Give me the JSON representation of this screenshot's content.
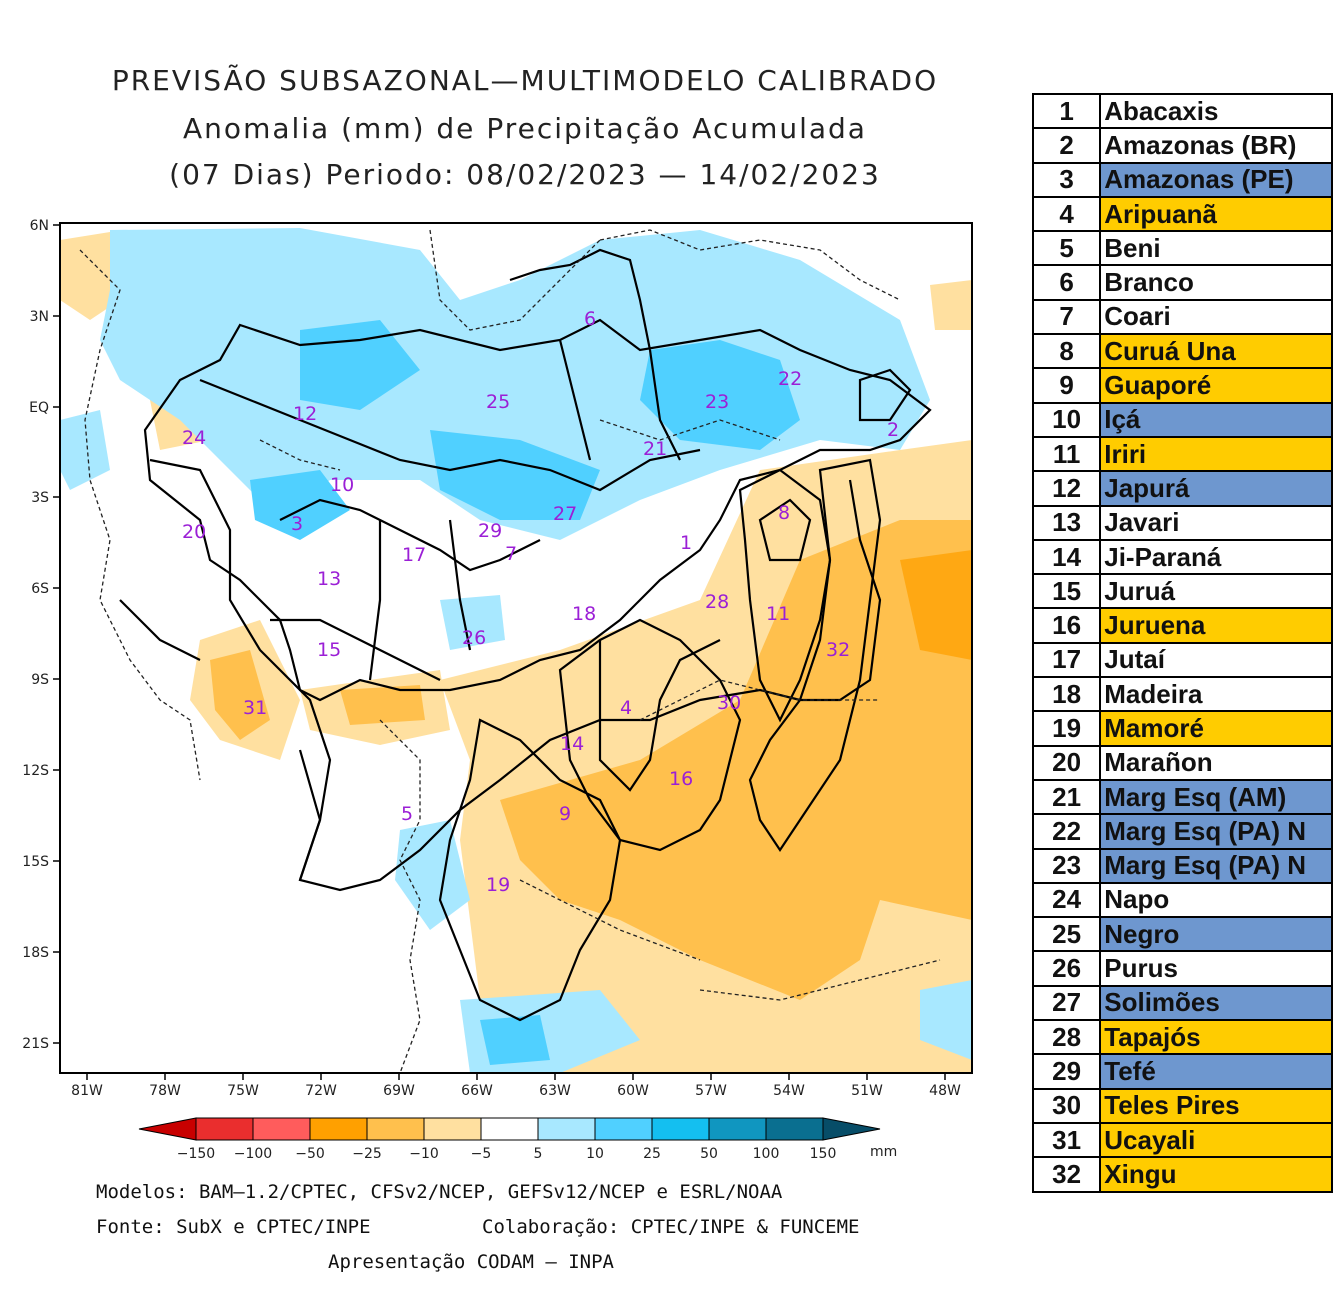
{
  "title": {
    "line1": "PREVISÃO SUBSAZONAL—MULTIMODELO CALIBRADO",
    "line2": "Anomalia (mm) de Precipitação Acumulada",
    "line3": "(07 Dias) Periodo: 08/02/2023 — 14/02/2023"
  },
  "axes": {
    "lat_labels": [
      "6N",
      "3N",
      "EQ",
      "3S",
      "6S",
      "9S",
      "12S",
      "15S",
      "18S",
      "21S"
    ],
    "lon_labels": [
      "81W",
      "78W",
      "75W",
      "72W",
      "69W",
      "66W",
      "63W",
      "60W",
      "57W",
      "54W",
      "51W",
      "48W"
    ]
  },
  "basin_labels": [
    {
      "id": "1"
    },
    {
      "id": "2"
    },
    {
      "id": "3"
    },
    {
      "id": "4"
    },
    {
      "id": "5"
    },
    {
      "id": "6"
    },
    {
      "id": "7"
    },
    {
      "id": "8"
    },
    {
      "id": "9"
    },
    {
      "id": "10"
    },
    {
      "id": "11"
    },
    {
      "id": "12"
    },
    {
      "id": "13"
    },
    {
      "id": "14"
    },
    {
      "id": "15"
    },
    {
      "id": "16"
    },
    {
      "id": "17"
    },
    {
      "id": "18"
    },
    {
      "id": "19"
    },
    {
      "id": "20"
    },
    {
      "id": "21"
    },
    {
      "id": "22"
    },
    {
      "id": "23"
    },
    {
      "id": "24"
    },
    {
      "id": "25"
    },
    {
      "id": "26"
    },
    {
      "id": "27"
    },
    {
      "id": "28"
    },
    {
      "id": "29"
    },
    {
      "id": "30"
    },
    {
      "id": "31"
    },
    {
      "id": "32"
    }
  ],
  "colorbar": {
    "ticks": [
      "−150",
      "−100",
      "−50",
      "−25",
      "−10",
      "−5",
      "5",
      "10",
      "25",
      "50",
      "100",
      "150"
    ],
    "unit": "mm",
    "colors": [
      "#c80000",
      "#ea2e2e",
      "#ff5c5c",
      "#ffa000",
      "#ffc04d",
      "#ffe0a0",
      "#ffffff",
      "#a8e8ff",
      "#50d0ff",
      "#14bff0",
      "#1096c0",
      "#0a6f90",
      "#074d68"
    ]
  },
  "footer": {
    "models": "Modelos: BAM—1.2/CPTEC, CFSv2/NCEP, GEFSv12/NCEP e ESRL/NOAA",
    "source": "Fonte: SubX e CPTEC/INPE",
    "collab": "Colaboração: CPTEC/INPE & FUNCEME",
    "presentation": "Apresentação CODAM — INPA"
  },
  "legend": [
    {
      "num": "1",
      "name": "Abacaxis",
      "highlight": "none"
    },
    {
      "num": "2",
      "name": "Amazonas (BR)",
      "highlight": "none"
    },
    {
      "num": "3",
      "name": "Amazonas (PE)",
      "highlight": "blue"
    },
    {
      "num": "4",
      "name": "Aripuanã",
      "highlight": "yellow"
    },
    {
      "num": "5",
      "name": "Beni",
      "highlight": "none"
    },
    {
      "num": "6",
      "name": "Branco",
      "highlight": "none"
    },
    {
      "num": "7",
      "name": "Coari",
      "highlight": "none"
    },
    {
      "num": "8",
      "name": "Curuá Una",
      "highlight": "yellow"
    },
    {
      "num": "9",
      "name": "Guaporé",
      "highlight": "yellow"
    },
    {
      "num": "10",
      "name": "Içá",
      "highlight": "blue"
    },
    {
      "num": "11",
      "name": "Iriri",
      "highlight": "yellow"
    },
    {
      "num": "12",
      "name": "Japurá",
      "highlight": "blue"
    },
    {
      "num": "13",
      "name": "Javari",
      "highlight": "none"
    },
    {
      "num": "14",
      "name": "Ji-Paraná",
      "highlight": "none"
    },
    {
      "num": "15",
      "name": "Juruá",
      "highlight": "none"
    },
    {
      "num": "16",
      "name": "Juruena",
      "highlight": "yellow"
    },
    {
      "num": "17",
      "name": "Jutaí",
      "highlight": "none"
    },
    {
      "num": "18",
      "name": "Madeira",
      "highlight": "none"
    },
    {
      "num": "19",
      "name": "Mamoré",
      "highlight": "yellow"
    },
    {
      "num": "20",
      "name": "Marañon",
      "highlight": "none"
    },
    {
      "num": "21",
      "name": "Marg Esq (AM)",
      "highlight": "blue"
    },
    {
      "num": "22",
      "name": "Marg Esq (PA) N",
      "highlight": "blue"
    },
    {
      "num": "23",
      "name": "Marg Esq (PA) N",
      "highlight": "blue"
    },
    {
      "num": "24",
      "name": "Napo",
      "highlight": "none"
    },
    {
      "num": "25",
      "name": "Negro",
      "highlight": "blue"
    },
    {
      "num": "26",
      "name": "Purus",
      "highlight": "none"
    },
    {
      "num": "27",
      "name": "Solimões",
      "highlight": "blue"
    },
    {
      "num": "28",
      "name": "Tapajós",
      "highlight": "yellow"
    },
    {
      "num": "29",
      "name": "Tefé",
      "highlight": "blue"
    },
    {
      "num": "30",
      "name": "Teles Pires",
      "highlight": "yellow"
    },
    {
      "num": "31",
      "name": "Ucayali",
      "highlight": "yellow"
    },
    {
      "num": "32",
      "name": "Xingu",
      "highlight": "yellow"
    }
  ]
}
